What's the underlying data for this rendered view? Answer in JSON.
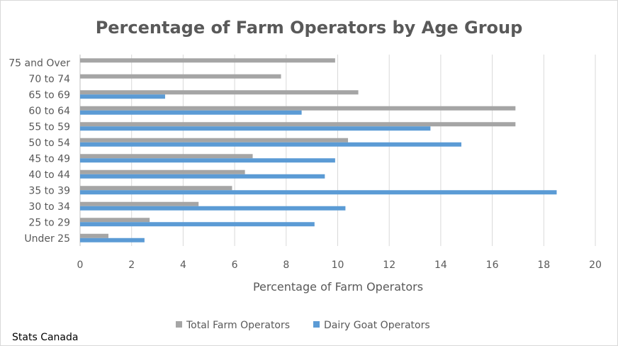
{
  "chart_data": {
    "type": "bar",
    "orientation": "horizontal",
    "title": "Percentage of Farm Operators by Age Group",
    "xlabel": "Percentage of Farm Operators",
    "ylabel": "",
    "categories": [
      "Under 25",
      "25 to 29",
      "30 to 34",
      "35 to 39",
      "40 to 44",
      "45 to 49",
      "50 to 54",
      "55 to 59",
      "60 to 64",
      "65 to 69",
      "70 to 74",
      "75 and Over"
    ],
    "series": [
      {
        "name": "Total Farm Operators",
        "color": "#a5a5a5",
        "values": [
          1.1,
          2.7,
          4.6,
          5.9,
          6.4,
          6.7,
          10.4,
          16.9,
          16.9,
          10.8,
          7.8,
          9.9
        ]
      },
      {
        "name": "Dairy Goat Operators",
        "color": "#5b9bd5",
        "values": [
          2.5,
          9.1,
          10.3,
          18.5,
          9.5,
          9.9,
          14.8,
          13.6,
          8.6,
          3.3,
          0,
          0
        ]
      }
    ],
    "xlim": [
      0,
      20
    ],
    "xticks": [
      0,
      2,
      4,
      6,
      8,
      10,
      12,
      14,
      16,
      18,
      20
    ],
    "grid": "vertical",
    "legend": "bottom"
  },
  "source_note": "Stats Canada"
}
